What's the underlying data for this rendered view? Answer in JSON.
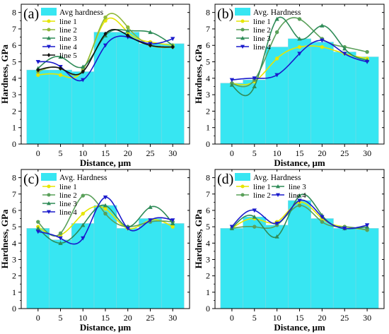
{
  "chart_data": [
    {
      "type": "bar",
      "panel_label": "(a)",
      "categories": [
        "0",
        "5",
        "10",
        "15",
        "20",
        "25",
        "30"
      ],
      "x": [
        0,
        5,
        10,
        15,
        20,
        25,
        30
      ],
      "xticks": [
        "0",
        "5",
        "10",
        "15",
        "20",
        "25",
        "30"
      ],
      "yticks": [
        "0",
        "1",
        "2",
        "3",
        "4",
        "5",
        "6",
        "7",
        "8"
      ],
      "values": [
        4.5,
        4.5,
        4.4,
        6.8,
        6.8,
        6.1,
        6.1
      ],
      "bar_name": "Avg hardness",
      "ylim": [
        0,
        8.5
      ],
      "xlabel": "Distance, μm",
      "ylabel": "Hardness, GPa",
      "legend_position": "top-left",
      "series": [
        {
          "name": "line 1",
          "color": "#e6e600",
          "marker": "circle",
          "values": [
            4.2,
            4.2,
            4.5,
            7.5,
            6.8,
            6.2,
            6.0
          ]
        },
        {
          "name": "line 2",
          "color": "#8fb83a",
          "marker": "circle",
          "values": [
            4.4,
            4.6,
            4.5,
            7.7,
            7.1,
            6.0,
            5.9
          ]
        },
        {
          "name": "line 3",
          "color": "#2e8b57",
          "marker": "triangle",
          "values": [
            4.6,
            5.3,
            4.7,
            6.6,
            6.9,
            6.8,
            6.0
          ]
        },
        {
          "name": "line 4",
          "color": "#1a1acc",
          "marker": "triangle-down",
          "values": [
            5.0,
            4.7,
            3.9,
            6.0,
            6.5,
            6.1,
            6.4
          ]
        },
        {
          "name": "line 5",
          "color": "#111111",
          "marker": "diamond",
          "values": [
            4.5,
            4.6,
            4.4,
            6.7,
            6.6,
            6.0,
            5.9
          ]
        }
      ]
    },
    {
      "type": "bar",
      "panel_label": "(b)",
      "categories": [
        "0",
        "5",
        "10",
        "15",
        "20",
        "25",
        "30"
      ],
      "x": [
        0,
        5,
        10,
        15,
        20,
        25,
        30
      ],
      "xticks": [
        "0",
        "5",
        "10",
        "15",
        "20",
        "25",
        "30"
      ],
      "yticks": [
        "0",
        "1",
        "2",
        "3",
        "4",
        "5",
        "6",
        "7",
        "8"
      ],
      "values": [
        3.7,
        3.9,
        5.9,
        6.4,
        6.2,
        5.6,
        5.3
      ],
      "bar_name": "Avg. Hardness",
      "ylim": [
        0,
        8.5
      ],
      "xlabel": "Distance, μm",
      "ylabel": "Hardness, GPa",
      "legend_position": "top-left",
      "series": [
        {
          "name": "line 1",
          "color": "#e6e600",
          "marker": "circle",
          "values": [
            3.7,
            3.8,
            5.2,
            5.9,
            5.9,
            5.5,
            5.2
          ]
        },
        {
          "name": "line 2",
          "color": "#5aa05a",
          "marker": "circle",
          "values": [
            3.7,
            3.9,
            6.8,
            7.6,
            6.4,
            5.9,
            5.6
          ]
        },
        {
          "name": "line 3",
          "color": "#2e8b57",
          "marker": "triangle",
          "values": [
            3.6,
            3.5,
            7.6,
            6.4,
            7.2,
            5.8,
            5.1
          ]
        },
        {
          "name": "line 4",
          "color": "#1a1acc",
          "marker": "triangle-down",
          "values": [
            3.9,
            4.0,
            4.2,
            5.5,
            6.3,
            5.5,
            5.0
          ]
        }
      ]
    },
    {
      "type": "bar",
      "panel_label": "(c)",
      "categories": [
        "0",
        "5",
        "10",
        "15",
        "20",
        "25",
        "30"
      ],
      "x": [
        0,
        5,
        10,
        15,
        20,
        25,
        30
      ],
      "xticks": [
        "0",
        "5",
        "10",
        "15",
        "20",
        "25",
        "30"
      ],
      "yticks": [
        "0",
        "1",
        "2",
        "3",
        "4",
        "5",
        "6",
        "7",
        "8"
      ],
      "values": [
        4.9,
        4.2,
        5.2,
        6.3,
        4.9,
        5.5,
        5.2
      ],
      "bar_name": "Avg. Hardness",
      "ylim": [
        0,
        8.5
      ],
      "xlabel": "Distance, μm",
      "ylabel": "Hardness, GPa",
      "legend_position": "top-left",
      "series": [
        {
          "name": "line 1",
          "color": "#e6e600",
          "marker": "circle",
          "values": [
            5.0,
            4.5,
            5.8,
            6.1,
            4.9,
            5.4,
            5.0
          ]
        },
        {
          "name": "line 2",
          "color": "#5aa05a",
          "marker": "circle",
          "values": [
            5.3,
            4.6,
            6.9,
            5.8,
            5.0,
            5.3,
            5.3
          ]
        },
        {
          "name": "line 3",
          "color": "#2e8b57",
          "marker": "triangle",
          "values": [
            4.9,
            4.0,
            5.1,
            6.3,
            5.0,
            6.2,
            5.2
          ]
        },
        {
          "name": "line 4",
          "color": "#1a1acc",
          "marker": "triangle-down",
          "values": [
            4.7,
            4.3,
            4.3,
            6.8,
            4.9,
            5.4,
            5.4
          ]
        }
      ]
    },
    {
      "type": "bar",
      "panel_label": "(d)",
      "categories": [
        "0",
        "5",
        "10",
        "15",
        "20",
        "25",
        "30"
      ],
      "x": [
        0,
        5,
        10,
        15,
        20,
        25,
        30
      ],
      "xticks": [
        "0",
        "5",
        "10",
        "15",
        "20",
        "25",
        "30"
      ],
      "yticks": [
        "0",
        "1",
        "2",
        "3",
        "4",
        "5",
        "6",
        "7",
        "8"
      ],
      "values": [
        4.9,
        5.6,
        5.1,
        6.6,
        5.5,
        4.9,
        4.9
      ],
      "bar_name": "Avg. Hardness",
      "ylim": [
        0,
        8.5
      ],
      "xlabel": "Distance, μm",
      "ylabel": "Hardness, GPa",
      "legend_position": "top-left",
      "series": [
        {
          "name": "line 1",
          "color": "#e6e600",
          "marker": "circle",
          "values": [
            4.9,
            5.5,
            5.3,
            6.5,
            5.5,
            5.0,
            4.8
          ]
        },
        {
          "name": "line 2",
          "color": "#5aa05a",
          "marker": "circle",
          "values": [
            4.9,
            5.0,
            5.1,
            6.3,
            5.3,
            5.0,
            4.8
          ]
        },
        {
          "name": "line 3",
          "color": "#2e8b57",
          "marker": "triangle",
          "values": [
            4.9,
            5.6,
            4.4,
            6.9,
            5.7,
            4.9,
            5.0
          ]
        },
        {
          "name": "line 4",
          "color": "#1a1acc",
          "marker": "triangle-down",
          "values": [
            5.0,
            6.0,
            5.2,
            6.6,
            5.6,
            4.9,
            5.1
          ]
        }
      ]
    }
  ]
}
